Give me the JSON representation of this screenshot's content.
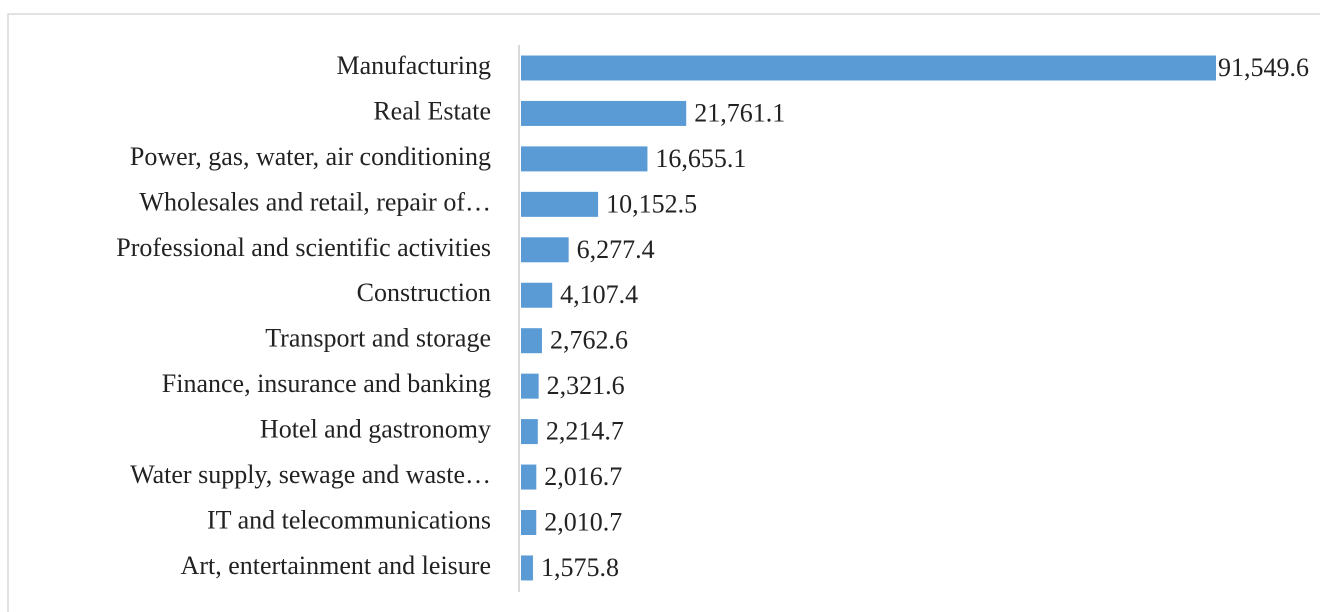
{
  "chart_data": {
    "type": "bar",
    "orientation": "horizontal",
    "categories": [
      "Manufacturing",
      "Real Estate",
      "Power, gas, water, air conditioning",
      "Wholesales and retail, repair of…",
      "Professional and scientific activities",
      "Construction",
      "Transport and storage",
      "Finance, insurance and banking",
      "Hotel and gastronomy",
      "Water supply, sewage and waste…",
      "IT and telecommunications",
      "Art, entertainment and leisure"
    ],
    "values": [
      91549.6,
      21761.1,
      16655.1,
      10152.5,
      6277.4,
      4107.4,
      2762.6,
      2321.6,
      2214.7,
      2016.7,
      2010.7,
      1575.8
    ],
    "value_labels": [
      "91,549.6",
      "21,761.1",
      "16,655.1",
      "10,152.5",
      "6,277.4",
      "4,107.4",
      "2,762.6",
      "2,321.6",
      "2,214.7",
      "2,016.7",
      "2,010.7",
      "1,575.8"
    ],
    "color": "#5b9bd5"
  }
}
